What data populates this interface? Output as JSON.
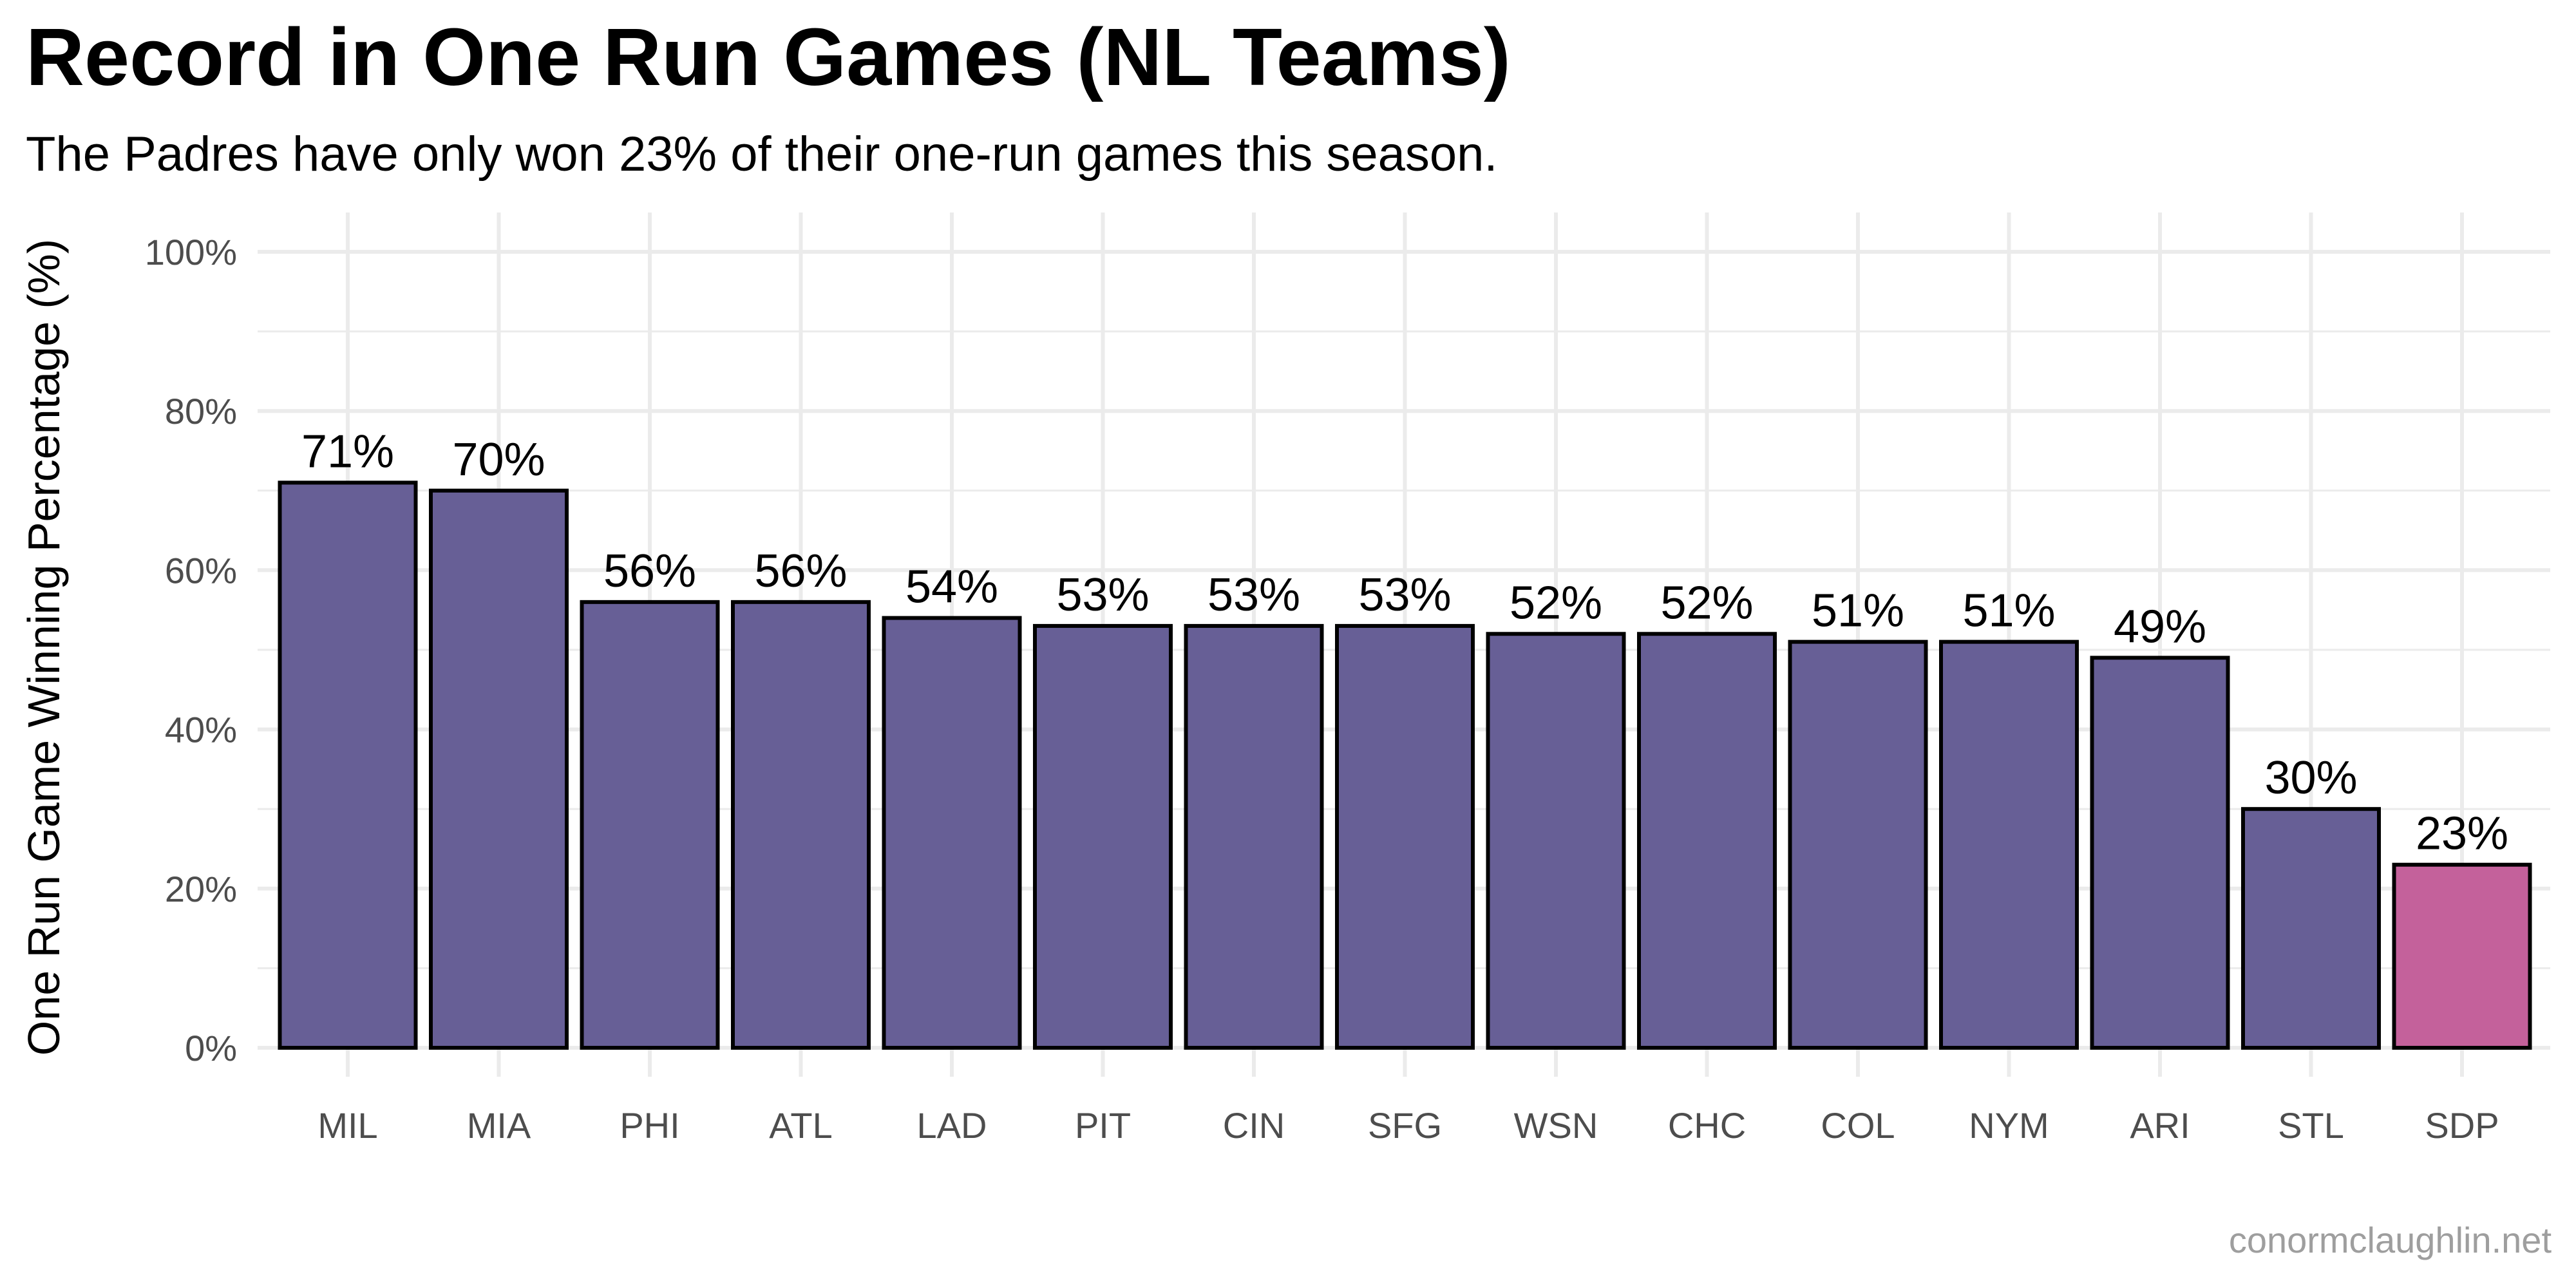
{
  "chart_data": {
    "type": "bar",
    "title": "Record in One Run Games (NL Teams)",
    "subtitle": "The Padres have only won 23% of their one-run games this season.",
    "caption": "conormclaughlin.net",
    "xlabel": "",
    "ylabel": "One Run Game Winning Percentage (%)",
    "ylim": [
      0,
      100
    ],
    "yticks": [
      0,
      20,
      40,
      60,
      80,
      100
    ],
    "ytick_labels": [
      "0%",
      "20%",
      "40%",
      "60%",
      "80%",
      "100%"
    ],
    "grid": true,
    "categories": [
      "MIL",
      "MIA",
      "PHI",
      "ATL",
      "LAD",
      "PIT",
      "CIN",
      "SFG",
      "WSN",
      "CHC",
      "COL",
      "NYM",
      "ARI",
      "STL",
      "SDP"
    ],
    "values": [
      71,
      70,
      56,
      56,
      54,
      53,
      53,
      53,
      52,
      52,
      51,
      51,
      49,
      30,
      23
    ],
    "data_labels": [
      "71%",
      "70%",
      "56%",
      "56%",
      "54%",
      "53%",
      "53%",
      "53%",
      "52%",
      "52%",
      "51%",
      "51%",
      "49%",
      "30%",
      "23%"
    ],
    "highlight_category": "SDP",
    "colors": {
      "bar": "#675f96",
      "highlight": "#c4619b",
      "outline": "#000000",
      "grid": "#ebebeb"
    }
  }
}
